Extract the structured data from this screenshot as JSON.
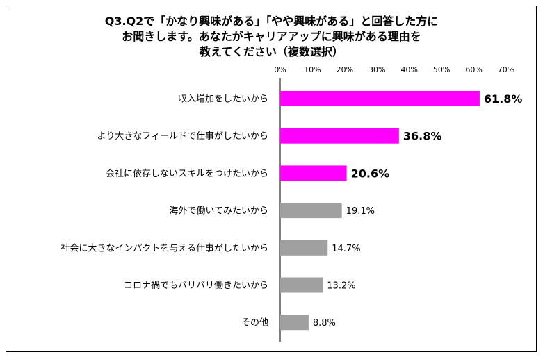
{
  "chart_data": {
    "type": "bar",
    "orientation": "horizontal",
    "title_lines": [
      "Q3.Q2で「かなり興味がある」「やや興味がある」と回答した方に",
      "お聞きします。あなたがキャリアアップに興味がある理由を",
      "教えてください（複数選択）"
    ],
    "categories": [
      "収入増加をしたいから",
      "より大きなフィールドで仕事がしたいから",
      "会社に依存しないスキルをつけたいから",
      "海外で働いてみたいから",
      "社会に大きなインパクトを与える仕事がしたいから",
      "コロナ禍でもバリバリ働きたいから",
      "その他"
    ],
    "values": [
      61.8,
      36.8,
      20.6,
      19.1,
      14.7,
      13.2,
      8.8
    ],
    "value_labels": [
      "61.8%",
      "36.8%",
      "20.6%",
      "19.1%",
      "14.7%",
      "13.2%",
      "8.8%"
    ],
    "highlighted": [
      true,
      true,
      true,
      false,
      false,
      false,
      false
    ],
    "xlim": [
      0,
      70
    ],
    "x_ticks": [
      0,
      10,
      20,
      30,
      40,
      50,
      60,
      70
    ],
    "x_tick_labels": [
      "0%",
      "10%",
      "20%",
      "30%",
      "40%",
      "50%",
      "60%",
      "70%"
    ],
    "x_axis_position": "top",
    "grid": false,
    "legend": "none",
    "colors": {
      "highlight": "#ff00ff",
      "normal": "#a0a0a0"
    }
  }
}
